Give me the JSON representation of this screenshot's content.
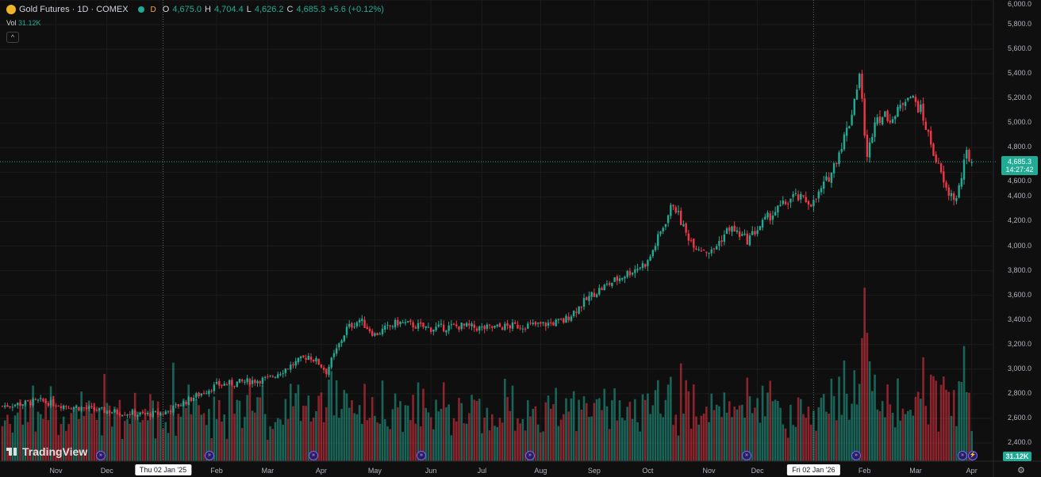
{
  "header": {
    "symbol": "Gold Futures · 1D · COMEX",
    "interval_badge": "D",
    "open_label": "O",
    "open": "4,675.0",
    "high_label": "H",
    "high": "4,704.4",
    "low_label": "L",
    "low": "4,626.2",
    "close_label": "C",
    "close": "4,685.3",
    "change": "+5.6 (+0.12%)",
    "vol_label": "Vol",
    "vol": "31.12K",
    "collapse": "^"
  },
  "price_axis": {
    "labels": [
      "6,000.0",
      "5,800.0",
      "5,600.0",
      "5,400.0",
      "5,200.0",
      "5,000.0",
      "4,800.0",
      "4,600.0",
      "4,400.0",
      "4,200.0",
      "4,000.0",
      "3,800.0",
      "3,600.0",
      "3,400.0",
      "3,200.0",
      "3,000.0",
      "2,800.0",
      "2,600.0",
      "2,400.0"
    ],
    "last_price": "4,685.3",
    "countdown": "14:27:42",
    "volume_tag": "31.12K"
  },
  "time_axis": {
    "labels": [
      {
        "t": "Nov",
        "i": 21
      },
      {
        "t": "Dec",
        "i": 41
      },
      {
        "t": "Thu 02 Jan '25",
        "i": 63,
        "hl": true
      },
      {
        "t": "Feb",
        "i": 84
      },
      {
        "t": "Mar",
        "i": 104
      },
      {
        "t": "Apr",
        "i": 125
      },
      {
        "t": "May",
        "i": 146
      },
      {
        "t": "Jun",
        "i": 168
      },
      {
        "t": "Jul",
        "i": 188
      },
      {
        "t": "Aug",
        "i": 211
      },
      {
        "t": "Sep",
        "i": 232
      },
      {
        "t": "Oct",
        "i": 253
      },
      {
        "t": "Nov",
        "i": 277
      },
      {
        "t": "Dec",
        "i": 296
      },
      {
        "t": "Fri 02 Jan '26",
        "i": 318,
        "hl": true
      },
      {
        "t": "Feb",
        "i": 338
      },
      {
        "t": "Mar",
        "i": 358
      },
      {
        "t": "Apr",
        "i": 380
      }
    ]
  },
  "watermark": "TradingView",
  "colors": {
    "up": "#22ab94",
    "down": "#f23645",
    "bg": "#0f0f0f"
  },
  "chart_data": {
    "type": "candlestick",
    "ylim": [
      2300,
      6000
    ],
    "price_path": [
      [
        0,
        2700
      ],
      [
        15,
        2740
      ],
      [
        25,
        2700
      ],
      [
        40,
        2660
      ],
      [
        55,
        2630
      ],
      [
        63,
        2640
      ],
      [
        84,
        2870
      ],
      [
        104,
        2920
      ],
      [
        120,
        3110
      ],
      [
        124,
        3050
      ],
      [
        127,
        2980
      ],
      [
        135,
        3330
      ],
      [
        140,
        3400
      ],
      [
        146,
        3280
      ],
      [
        155,
        3380
      ],
      [
        168,
        3330
      ],
      [
        180,
        3350
      ],
      [
        188,
        3330
      ],
      [
        200,
        3350
      ],
      [
        211,
        3360
      ],
      [
        220,
        3390
      ],
      [
        232,
        3620
      ],
      [
        245,
        3780
      ],
      [
        253,
        3870
      ],
      [
        263,
        4350
      ],
      [
        268,
        4100
      ],
      [
        272,
        4000
      ],
      [
        278,
        3950
      ],
      [
        285,
        4150
      ],
      [
        292,
        4050
      ],
      [
        300,
        4230
      ],
      [
        310,
        4400
      ],
      [
        318,
        4350
      ],
      [
        325,
        4600
      ],
      [
        332,
        5000
      ],
      [
        336,
        5400
      ],
      [
        339,
        4700
      ],
      [
        342,
        5050
      ],
      [
        350,
        5050
      ],
      [
        355,
        5250
      ],
      [
        360,
        5100
      ],
      [
        366,
        4700
      ],
      [
        370,
        4450
      ],
      [
        374,
        4380
      ],
      [
        378,
        4750
      ],
      [
        380,
        4685
      ]
    ]
  }
}
